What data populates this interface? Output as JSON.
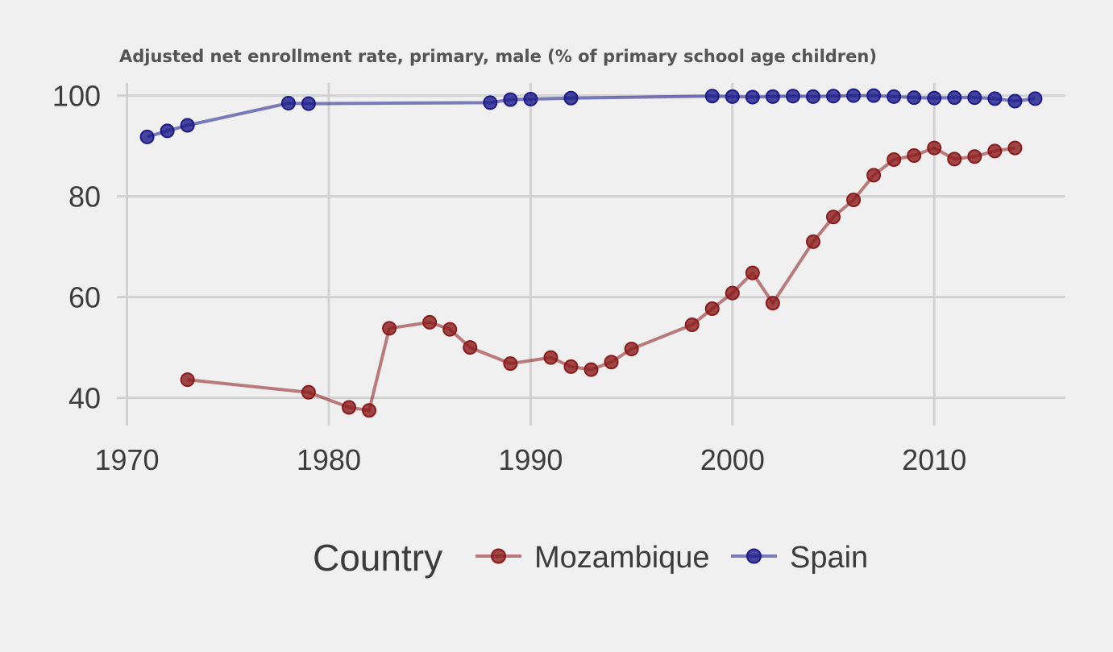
{
  "chart_data": {
    "type": "line",
    "title": "Adjusted net enrollment rate, primary, male (% of primary school age children)",
    "xlabel": "",
    "ylabel": "",
    "xlim": [
      1969.5,
      2016.5
    ],
    "ylim": [
      34.5,
      102.5
    ],
    "x_ticks": [
      1970,
      1980,
      1990,
      2000,
      2010
    ],
    "y_ticks": [
      40,
      60,
      80,
      100
    ],
    "grid": true,
    "legend": {
      "title": "Country",
      "position": "bottom"
    },
    "series": [
      {
        "name": "Mozambique",
        "color": "#8b1a1a",
        "points": [
          [
            1973,
            43.6
          ],
          [
            1979,
            41.1
          ],
          [
            1981,
            38.1
          ],
          [
            1982,
            37.5
          ],
          [
            1983,
            53.8
          ],
          [
            1985,
            55.0
          ],
          [
            1986,
            53.6
          ],
          [
            1987,
            50.0
          ],
          [
            1989,
            46.8
          ],
          [
            1991,
            48.0
          ],
          [
            1992,
            46.2
          ],
          [
            1993,
            45.6
          ],
          [
            1994,
            47.1
          ],
          [
            1995,
            49.7
          ],
          [
            1998,
            54.5
          ],
          [
            1999,
            57.7
          ],
          [
            2000,
            60.8
          ],
          [
            2001,
            64.8
          ],
          [
            2002,
            58.8
          ],
          [
            2004,
            71.0
          ],
          [
            2005,
            75.9
          ],
          [
            2006,
            79.3
          ],
          [
            2007,
            84.2
          ],
          [
            2008,
            87.3
          ],
          [
            2009,
            88.1
          ],
          [
            2010,
            89.6
          ],
          [
            2011,
            87.4
          ],
          [
            2012,
            87.9
          ],
          [
            2013,
            89.0
          ],
          [
            2014,
            89.6
          ]
        ]
      },
      {
        "name": "Spain",
        "color": "#1a1a8b",
        "points": [
          [
            1971,
            91.8
          ],
          [
            1972,
            93.0
          ],
          [
            1973,
            94.1
          ],
          [
            1978,
            98.5
          ],
          [
            1979,
            98.4
          ],
          [
            1988,
            98.6
          ],
          [
            1989,
            99.2
          ],
          [
            1990,
            99.3
          ],
          [
            1992,
            99.5
          ],
          [
            1999,
            99.9
          ],
          [
            2000,
            99.8
          ],
          [
            2001,
            99.7
          ],
          [
            2002,
            99.8
          ],
          [
            2003,
            99.9
          ],
          [
            2004,
            99.8
          ],
          [
            2005,
            99.9
          ],
          [
            2006,
            100.0
          ],
          [
            2007,
            100.0
          ],
          [
            2008,
            99.8
          ],
          [
            2009,
            99.6
          ],
          [
            2010,
            99.5
          ],
          [
            2011,
            99.6
          ],
          [
            2012,
            99.6
          ],
          [
            2013,
            99.4
          ],
          [
            2014,
            98.9
          ],
          [
            2015,
            99.4
          ]
        ]
      }
    ]
  }
}
